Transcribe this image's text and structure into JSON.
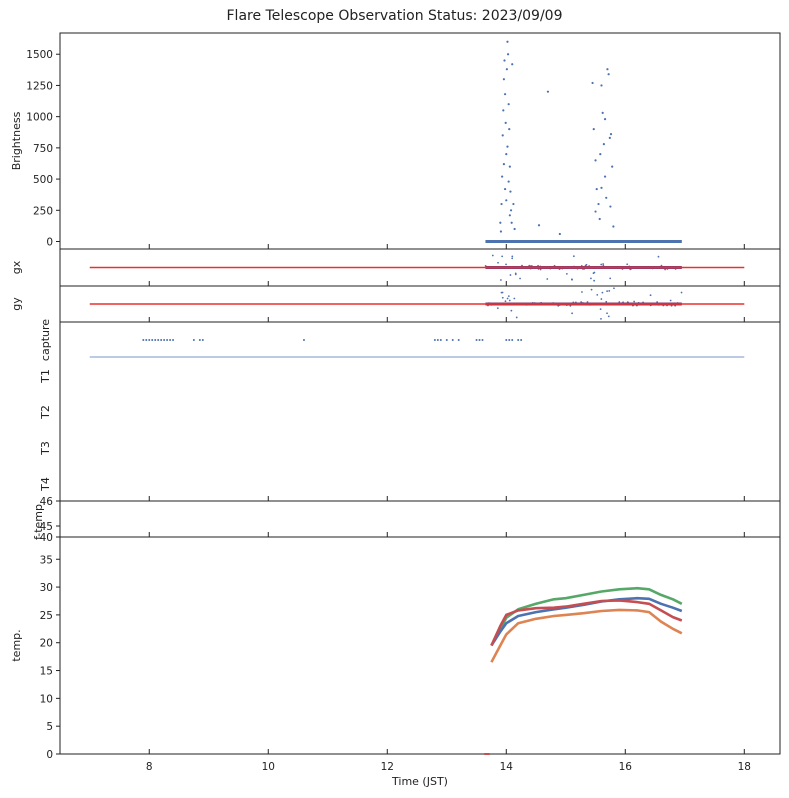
{
  "chart_data": {
    "type": "scatter",
    "title": "Flare Telescope Observation Status: 2023/09/09",
    "xlabel": "Time (JST)",
    "xlim": [
      6.5,
      18.6
    ],
    "xticks": [
      8,
      10,
      12,
      14,
      16,
      18
    ],
    "panels": [
      {
        "id": "brightness",
        "ylabel": "Brightness",
        "ylim": [
          -60,
          1670
        ],
        "yticks": [
          0,
          250,
          500,
          750,
          1000,
          1250,
          1500
        ],
        "series": [
          {
            "type": "scatter",
            "color": "#4c72b0",
            "baseline": {
              "x_start": 13.65,
              "x_end": 16.95,
              "y": 0
            },
            "points": [
              [
                13.92,
                300
              ],
              [
                13.93,
                520
              ],
              [
                13.94,
                850
              ],
              [
                13.95,
                1050
              ],
              [
                13.96,
                1300
              ],
              [
                13.97,
                1450
              ],
              [
                13.98,
                1180
              ],
              [
                13.99,
                950
              ],
              [
                14.0,
                700
              ],
              [
                14.01,
                1380
              ],
              [
                14.02,
                1600
              ],
              [
                14.03,
                1500
              ],
              [
                14.04,
                1100
              ],
              [
                14.05,
                900
              ],
              [
                14.06,
                600
              ],
              [
                14.07,
                400
              ],
              [
                14.08,
                250
              ],
              [
                14.09,
                150
              ],
              [
                14.1,
                1420
              ],
              [
                14.12,
                300
              ],
              [
                14.14,
                100
              ],
              [
                13.9,
                150
              ],
              [
                13.91,
                80
              ],
              [
                13.96,
                620
              ],
              [
                13.98,
                420
              ],
              [
                14.0,
                330
              ],
              [
                14.02,
                760
              ],
              [
                14.04,
                480
              ],
              [
                14.06,
                210
              ],
              [
                14.55,
                130
              ],
              [
                14.7,
                1200
              ],
              [
                14.9,
                60
              ],
              [
                15.45,
                1270
              ],
              [
                15.47,
                900
              ],
              [
                15.5,
                650
              ],
              [
                15.52,
                420
              ],
              [
                15.55,
                300
              ],
              [
                15.57,
                180
              ],
              [
                15.6,
                1250
              ],
              [
                15.62,
                1030
              ],
              [
                15.64,
                780
              ],
              [
                15.66,
                520
              ],
              [
                15.68,
                350
              ],
              [
                15.7,
                1380
              ],
              [
                15.72,
                1340
              ],
              [
                15.74,
                830
              ],
              [
                15.76,
                860
              ],
              [
                15.78,
                600
              ],
              [
                15.5,
                240
              ],
              [
                15.6,
                430
              ],
              [
                15.75,
                280
              ],
              [
                15.8,
                120
              ],
              [
                15.58,
                700
              ],
              [
                15.66,
                980
              ]
            ]
          }
        ]
      },
      {
        "id": "gx",
        "ylabel": "gx",
        "series": [
          {
            "type": "line",
            "color": "#e8312f",
            "x": [
              7.0,
              18.0
            ]
          },
          {
            "type": "scatter",
            "color": "#4c72b0",
            "x_ranges": [
              [
                13.65,
                16.95
              ]
            ]
          }
        ]
      },
      {
        "id": "gy",
        "ylabel": "gy",
        "series": [
          {
            "type": "line",
            "color": "#e8312f",
            "x": [
              7.0,
              18.0
            ]
          },
          {
            "type": "scatter",
            "color": "#4c72b0",
            "x_ranges": [
              [
                13.65,
                16.95
              ]
            ]
          }
        ]
      },
      {
        "id": "status",
        "categories": [
          "capture",
          "T1",
          "T2",
          "T3",
          "T4"
        ],
        "series": [
          {
            "type": "line",
            "color": "#4c72b0",
            "row": "between capture and T1",
            "x": [
              7.0,
              18.0
            ]
          },
          {
            "type": "scatter",
            "color": "#4c72b0",
            "row": "capture",
            "x": [
              7.9,
              7.95,
              8.0,
              8.05,
              8.1,
              8.15,
              8.2,
              8.25,
              8.3,
              8.35,
              8.4,
              8.75,
              8.85,
              8.9,
              10.6,
              12.8,
              12.85,
              12.9,
              13.0,
              13.1,
              13.2,
              13.5,
              13.55,
              13.6,
              14.0,
              14.05,
              14.1,
              14.2,
              14.25
            ]
          }
        ]
      },
      {
        "id": "f-temp",
        "ylabel": "f-temp",
        "ylim": [
          40,
          46
        ],
        "yticks": [
          40,
          45,
          46
        ],
        "series": []
      },
      {
        "id": "temp",
        "ylabel": "temp.",
        "ylim": [
          0,
          39
        ],
        "yticks": [
          0,
          5,
          10,
          15,
          20,
          25,
          30,
          35
        ],
        "series": [
          {
            "type": "line",
            "color": "#55a868",
            "x": [
              13.75,
              13.9,
              14.0,
              14.2,
              14.5,
              14.8,
              15.0,
              15.3,
              15.6,
              15.9,
              16.2,
              16.4,
              16.6,
              16.8,
              16.95
            ],
            "y": [
              19.5,
              22.5,
              24.5,
              26.0,
              27.0,
              27.8,
              28.0,
              28.6,
              29.2,
              29.6,
              29.8,
              29.6,
              28.6,
              27.8,
              27.0
            ]
          },
          {
            "type": "line",
            "color": "#4c72b0",
            "x": [
              13.75,
              13.9,
              14.0,
              14.2,
              14.5,
              14.8,
              15.0,
              15.3,
              15.6,
              15.9,
              16.2,
              16.4,
              16.6,
              16.8,
              16.95
            ],
            "y": [
              19.5,
              22.0,
              23.5,
              24.8,
              25.5,
              26.0,
              26.3,
              26.8,
              27.4,
              27.8,
              28.0,
              27.9,
              27.0,
              26.3,
              25.7
            ]
          },
          {
            "type": "line",
            "color": "#c44e52",
            "x": [
              13.75,
              13.9,
              14.0,
              14.2,
              14.5,
              14.8,
              15.0,
              15.3,
              15.6,
              15.9,
              16.2,
              16.4,
              16.6,
              16.8,
              16.95
            ],
            "y": [
              19.5,
              23.0,
              25.0,
              25.8,
              26.2,
              26.3,
              26.5,
              27.0,
              27.5,
              27.6,
              27.3,
              27.0,
              25.8,
              24.6,
              24.0
            ]
          },
          {
            "type": "line",
            "color": "#dd8452",
            "x": [
              13.75,
              13.9,
              14.0,
              14.2,
              14.5,
              14.8,
              15.0,
              15.3,
              15.6,
              15.9,
              16.2,
              16.4,
              16.6,
              16.8,
              16.95
            ],
            "y": [
              16.5,
              19.5,
              21.5,
              23.5,
              24.3,
              24.8,
              25.0,
              25.3,
              25.7,
              25.9,
              25.8,
              25.5,
              23.8,
              22.5,
              21.7
            ]
          }
        ]
      }
    ]
  }
}
